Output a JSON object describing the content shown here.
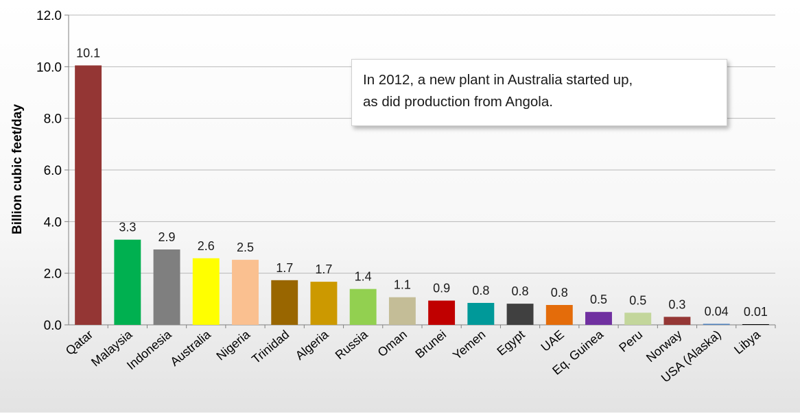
{
  "chart_data": {
    "type": "bar",
    "title": "",
    "xlabel": "",
    "ylabel": "Billion cubic feet/day",
    "ylim": [
      0,
      12
    ],
    "yticks": [
      "0.0",
      "2.0",
      "4.0",
      "6.0",
      "8.0",
      "10.0",
      "12.0"
    ],
    "grid": true,
    "categories": [
      "Qatar",
      "Malaysia",
      "Indonesia",
      "Australia",
      "Nigeria",
      "Trinidad",
      "Algeria",
      "Russia",
      "Oman",
      "Brunei",
      "Yemen",
      "Egypt",
      "UAE",
      "Eq. Guinea",
      "Peru",
      "Norway",
      "USA (Alaska)",
      "Libya"
    ],
    "values": [
      10.05,
      3.3,
      2.92,
      2.58,
      2.52,
      1.73,
      1.67,
      1.39,
      1.07,
      0.94,
      0.85,
      0.82,
      0.77,
      0.5,
      0.47,
      0.31,
      0.04,
      0.01
    ],
    "data_labels": [
      "10.1",
      "3.3",
      "2.9",
      "2.6",
      "2.5",
      "1.7",
      "1.7",
      "1.4",
      "1.1",
      "0.9",
      "0.8",
      "0.8",
      "0.8",
      "0.5",
      "0.5",
      "0.3",
      "0.04",
      "0.01"
    ],
    "colors": [
      "#943634",
      "#00b050",
      "#7f7f7f",
      "#ffff00",
      "#fac090",
      "#996600",
      "#cc9900",
      "#92d050",
      "#c4bd97",
      "#c00000",
      "#009999",
      "#404040",
      "#e46c0a",
      "#7030a0",
      "#c3d69b",
      "#953735",
      "#4f81bd",
      "#000000"
    ],
    "annotation": {
      "line1": "In 2012, a new plant in Australia started up,",
      "line2": "as did production from Angola."
    }
  }
}
